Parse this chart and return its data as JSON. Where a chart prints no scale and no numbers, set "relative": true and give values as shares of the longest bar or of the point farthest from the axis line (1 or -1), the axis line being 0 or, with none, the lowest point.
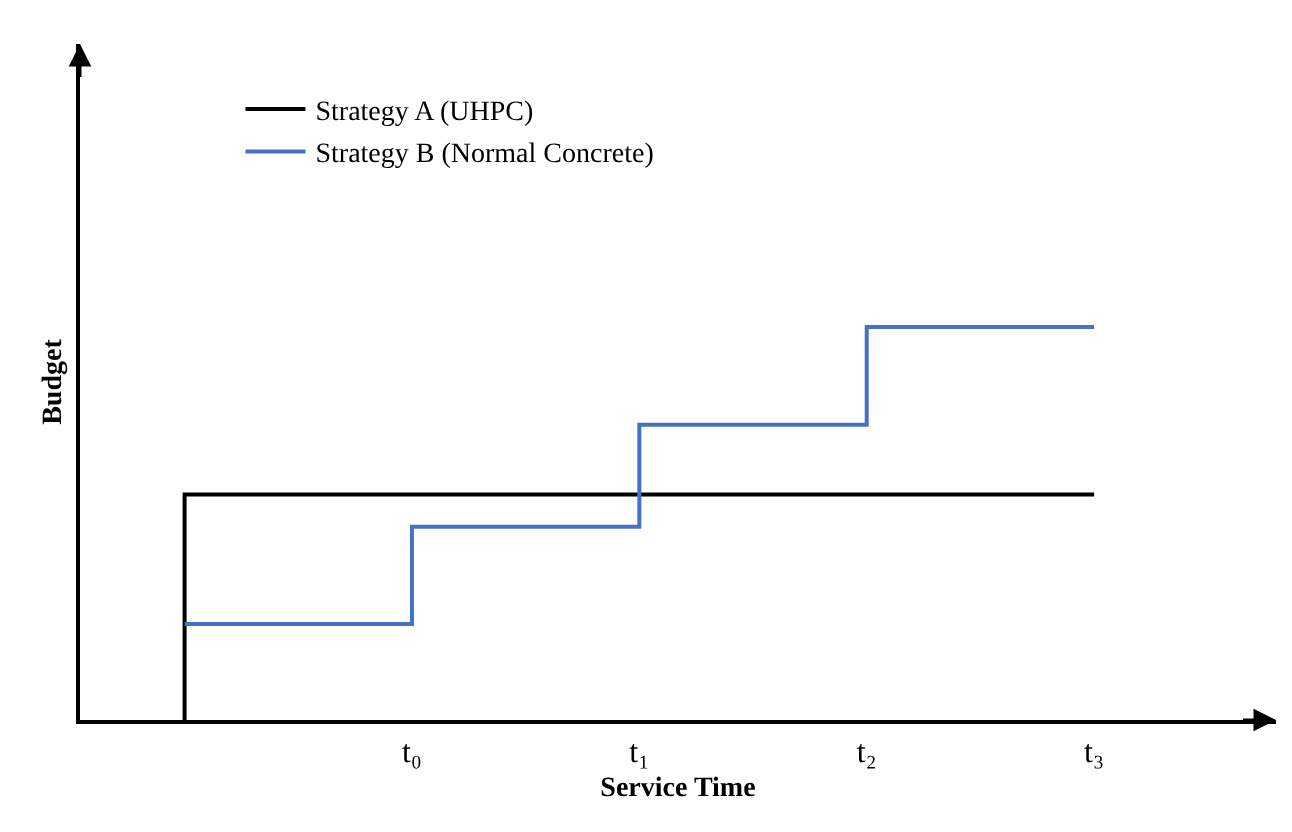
{
  "chart_data": {
    "type": "step",
    "xlabel": "Service Time",
    "ylabel": "Budget",
    "relative": true,
    "legend": "top left",
    "categories": [
      null,
      "t₀",
      "t₁",
      "t₂",
      "t₃"
    ],
    "series": [
      {
        "name": "Strategy A (UHPC)",
        "color": "#000000",
        "values": [
          0,
          0.574,
          0.574,
          0.574,
          0.574
        ]
      },
      {
        "name": "Strategy B (Normal Concrete)",
        "color": "#4472c4",
        "values": [
          0.244,
          0.244,
          0.492,
          0.751,
          1
        ]
      }
    ]
  }
}
